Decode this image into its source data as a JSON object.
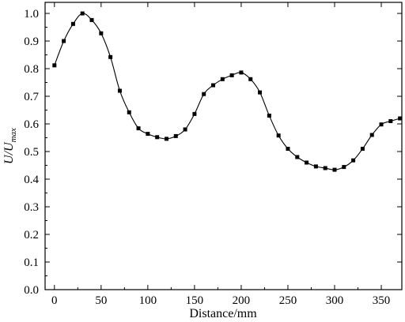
{
  "chart_data": {
    "type": "line",
    "xlabel": "Distance/mm",
    "ylabel": {
      "main": "U/U",
      "subscript": "max"
    },
    "xlim": [
      -10,
      372
    ],
    "ylim": [
      0.0,
      1.04
    ],
    "xticks": [
      0,
      50,
      100,
      150,
      200,
      250,
      300,
      350
    ],
    "yticks": [
      0.0,
      0.1,
      0.2,
      0.3,
      0.4,
      0.5,
      0.6,
      0.7,
      0.8,
      0.9,
      1.0
    ],
    "xtick_labels": [
      "0",
      "50",
      "100",
      "150",
      "200",
      "250",
      "300",
      "350"
    ],
    "ytick_labels": [
      "0.0",
      "0.1",
      "0.2",
      "0.3",
      "0.4",
      "0.5",
      "0.6",
      "0.7",
      "0.8",
      "0.9",
      "1.0"
    ],
    "grid": false,
    "marker": "square",
    "series": [
      {
        "x": [
          0,
          10,
          20,
          30,
          40,
          50,
          60,
          70,
          80,
          90,
          100,
          110,
          120,
          130,
          140,
          150,
          160,
          170,
          180,
          190,
          200,
          210,
          220,
          230,
          240,
          250,
          260,
          270,
          280,
          290,
          300,
          310,
          320,
          330,
          340,
          350,
          360,
          370
        ],
        "values": [
          0.812,
          0.9,
          0.962,
          1.0,
          0.976,
          0.928,
          0.842,
          0.72,
          0.642,
          0.584,
          0.564,
          0.552,
          0.546,
          0.556,
          0.58,
          0.636,
          0.708,
          0.74,
          0.762,
          0.776,
          0.786,
          0.762,
          0.714,
          0.63,
          0.558,
          0.51,
          0.48,
          0.46,
          0.446,
          0.44,
          0.434,
          0.444,
          0.468,
          0.51,
          0.56,
          0.598,
          0.61,
          0.62
        ]
      }
    ]
  }
}
